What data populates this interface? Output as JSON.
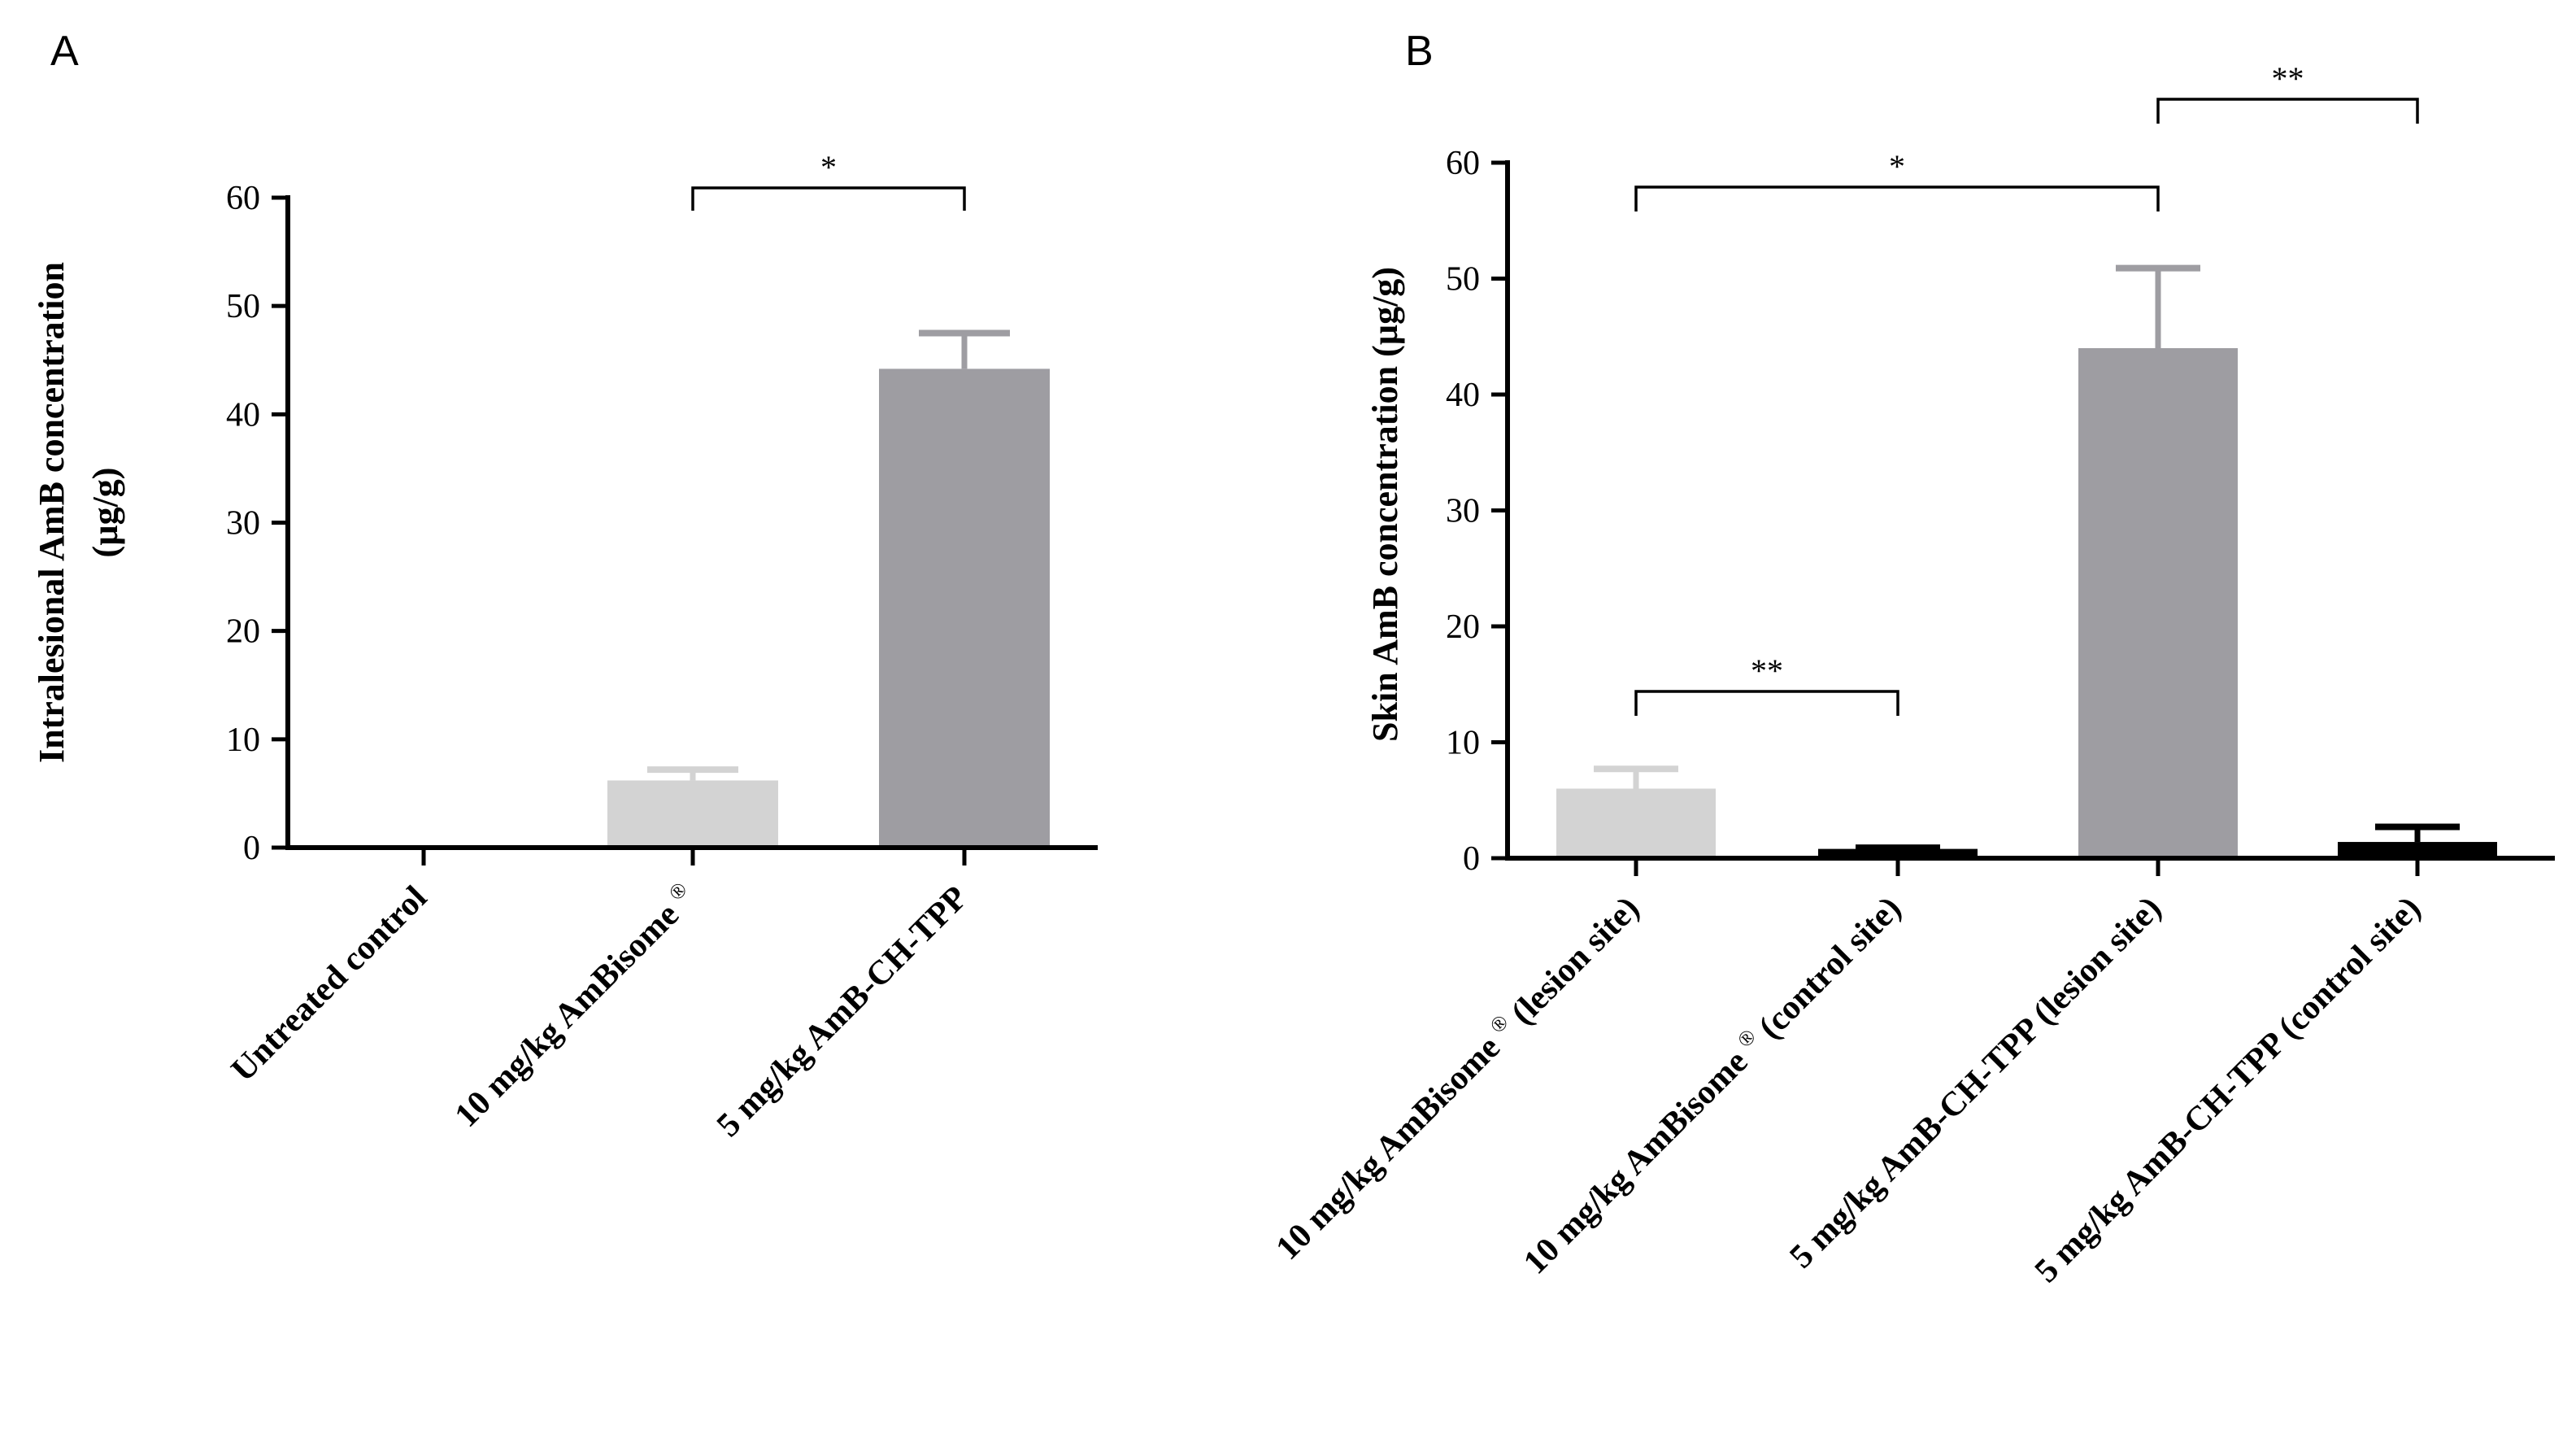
{
  "colors": {
    "light_gray": "#d3d3d3",
    "mid_gray": "#9e9da2",
    "black": "#000000"
  },
  "chart_data": [
    {
      "type": "bar",
      "panel_label": "A",
      "ylabel_line1": "Intralesional AmB concentration",
      "ylabel_line2": "(µg/g)",
      "xlabel": "",
      "ylim": [
        0,
        60
      ],
      "yticks": [
        0,
        10,
        20,
        30,
        40,
        50,
        60
      ],
      "categories": [
        "Untreated control",
        "10 mg/kg AmBisome",
        "5 mg/kg AmB-CH-TPP"
      ],
      "category_superscripts": [
        "",
        "®",
        ""
      ],
      "values": [
        0,
        6.2,
        44.2
      ],
      "errors": [
        0,
        1.0,
        3.3
      ],
      "bar_colors": [
        "#d3d3d3",
        "#d3d3d3",
        "#9e9da2"
      ],
      "significance": [
        {
          "from": 1,
          "to": 2,
          "label": "*"
        }
      ]
    },
    {
      "type": "bar",
      "panel_label": "B",
      "ylabel_line1": "Skin AmB concentration (µg/g)",
      "xlabel": "",
      "ylim": [
        0,
        60
      ],
      "yticks": [
        0,
        10,
        20,
        30,
        40,
        50,
        60
      ],
      "categories": [
        "10 mg/kg AmBisome (lesion site)",
        "10 mg/kg AmBisome (control site)",
        "5 mg/kg AmB-CH-TPP (lesion site)",
        "5 mg/kg AmB-CH-TPP (control site)"
      ],
      "category_parts": [
        [
          "10 mg/kg AmBisome",
          "®",
          " (lesion site)"
        ],
        [
          "10 mg/kg AmBisome",
          "®",
          " (control site)"
        ],
        [
          "5 mg/kg AmB-CH-TPP (lesion site)",
          "",
          ""
        ],
        [
          "5 mg/kg AmB-CH-TPP (control site)",
          "",
          ""
        ]
      ],
      "values": [
        6.0,
        0.8,
        44.0,
        1.4
      ],
      "errors": [
        1.7,
        0.1,
        6.9,
        1.3
      ],
      "bar_colors": [
        "#d3d3d3",
        "#000000",
        "#9e9da2",
        "#000000"
      ],
      "significance": [
        {
          "from": 0,
          "to": 1,
          "label": "**"
        },
        {
          "from": 0,
          "to": 2,
          "label": "*"
        },
        {
          "from": 2,
          "to": 3,
          "label": "**"
        }
      ]
    }
  ]
}
